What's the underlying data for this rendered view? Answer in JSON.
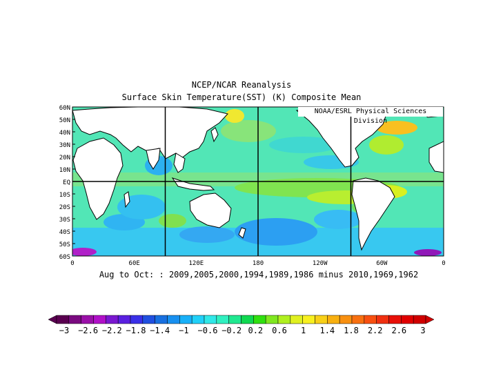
{
  "title_line1": "NCEP/NCAR Reanalysis",
  "title_line2": "Surface Skin Temperature(SST) (K) Composite Mean",
  "credit": "NOAA/ESRL Physical Sciences Division",
  "subtitle": "Aug to Oct: : 2009,2005,2000,1994,1989,1986 minus 2010,1969,1962",
  "lat_labels": [
    "60N",
    "50N",
    "40N",
    "30N",
    "20N",
    "10N",
    "EQ",
    "10S",
    "20S",
    "30S",
    "40S",
    "50S",
    "60S"
  ],
  "lon_labels": [
    "0",
    "60E",
    "120E",
    "180",
    "120W",
    "60W",
    "0"
  ],
  "colorbar": {
    "labels": [
      "-3",
      "-2.6",
      "-2.2",
      "-1.8",
      "-1.4",
      "-1",
      "-0.6",
      "-0.2",
      "0.2",
      "0.6",
      "1",
      "1.4",
      "1.8",
      "2.2",
      "2.6",
      "3"
    ],
    "colors": [
      "#5a0050",
      "#7a0a80",
      "#9a10a8",
      "#b010c8",
      "#7a18d0",
      "#5a20e0",
      "#3a30e8",
      "#2050e0",
      "#1870e0",
      "#1890f0",
      "#18b0f8",
      "#20d0f8",
      "#30e8e8",
      "#30f0c0",
      "#20e890",
      "#10d850",
      "#30e010",
      "#80e820",
      "#b0f020",
      "#e0f020",
      "#f8f020",
      "#f8d018",
      "#f8b010",
      "#f89010",
      "#f87010",
      "#f85010",
      "#f03010",
      "#e81008",
      "#e00000",
      "#d00000"
    ],
    "min": -3,
    "max": 3
  },
  "map_data": {
    "projection": "equirectangular",
    "lon_range": [
      0,
      360
    ],
    "lat_range": [
      -60,
      60
    ],
    "field": "SST composite mean difference (K)"
  }
}
